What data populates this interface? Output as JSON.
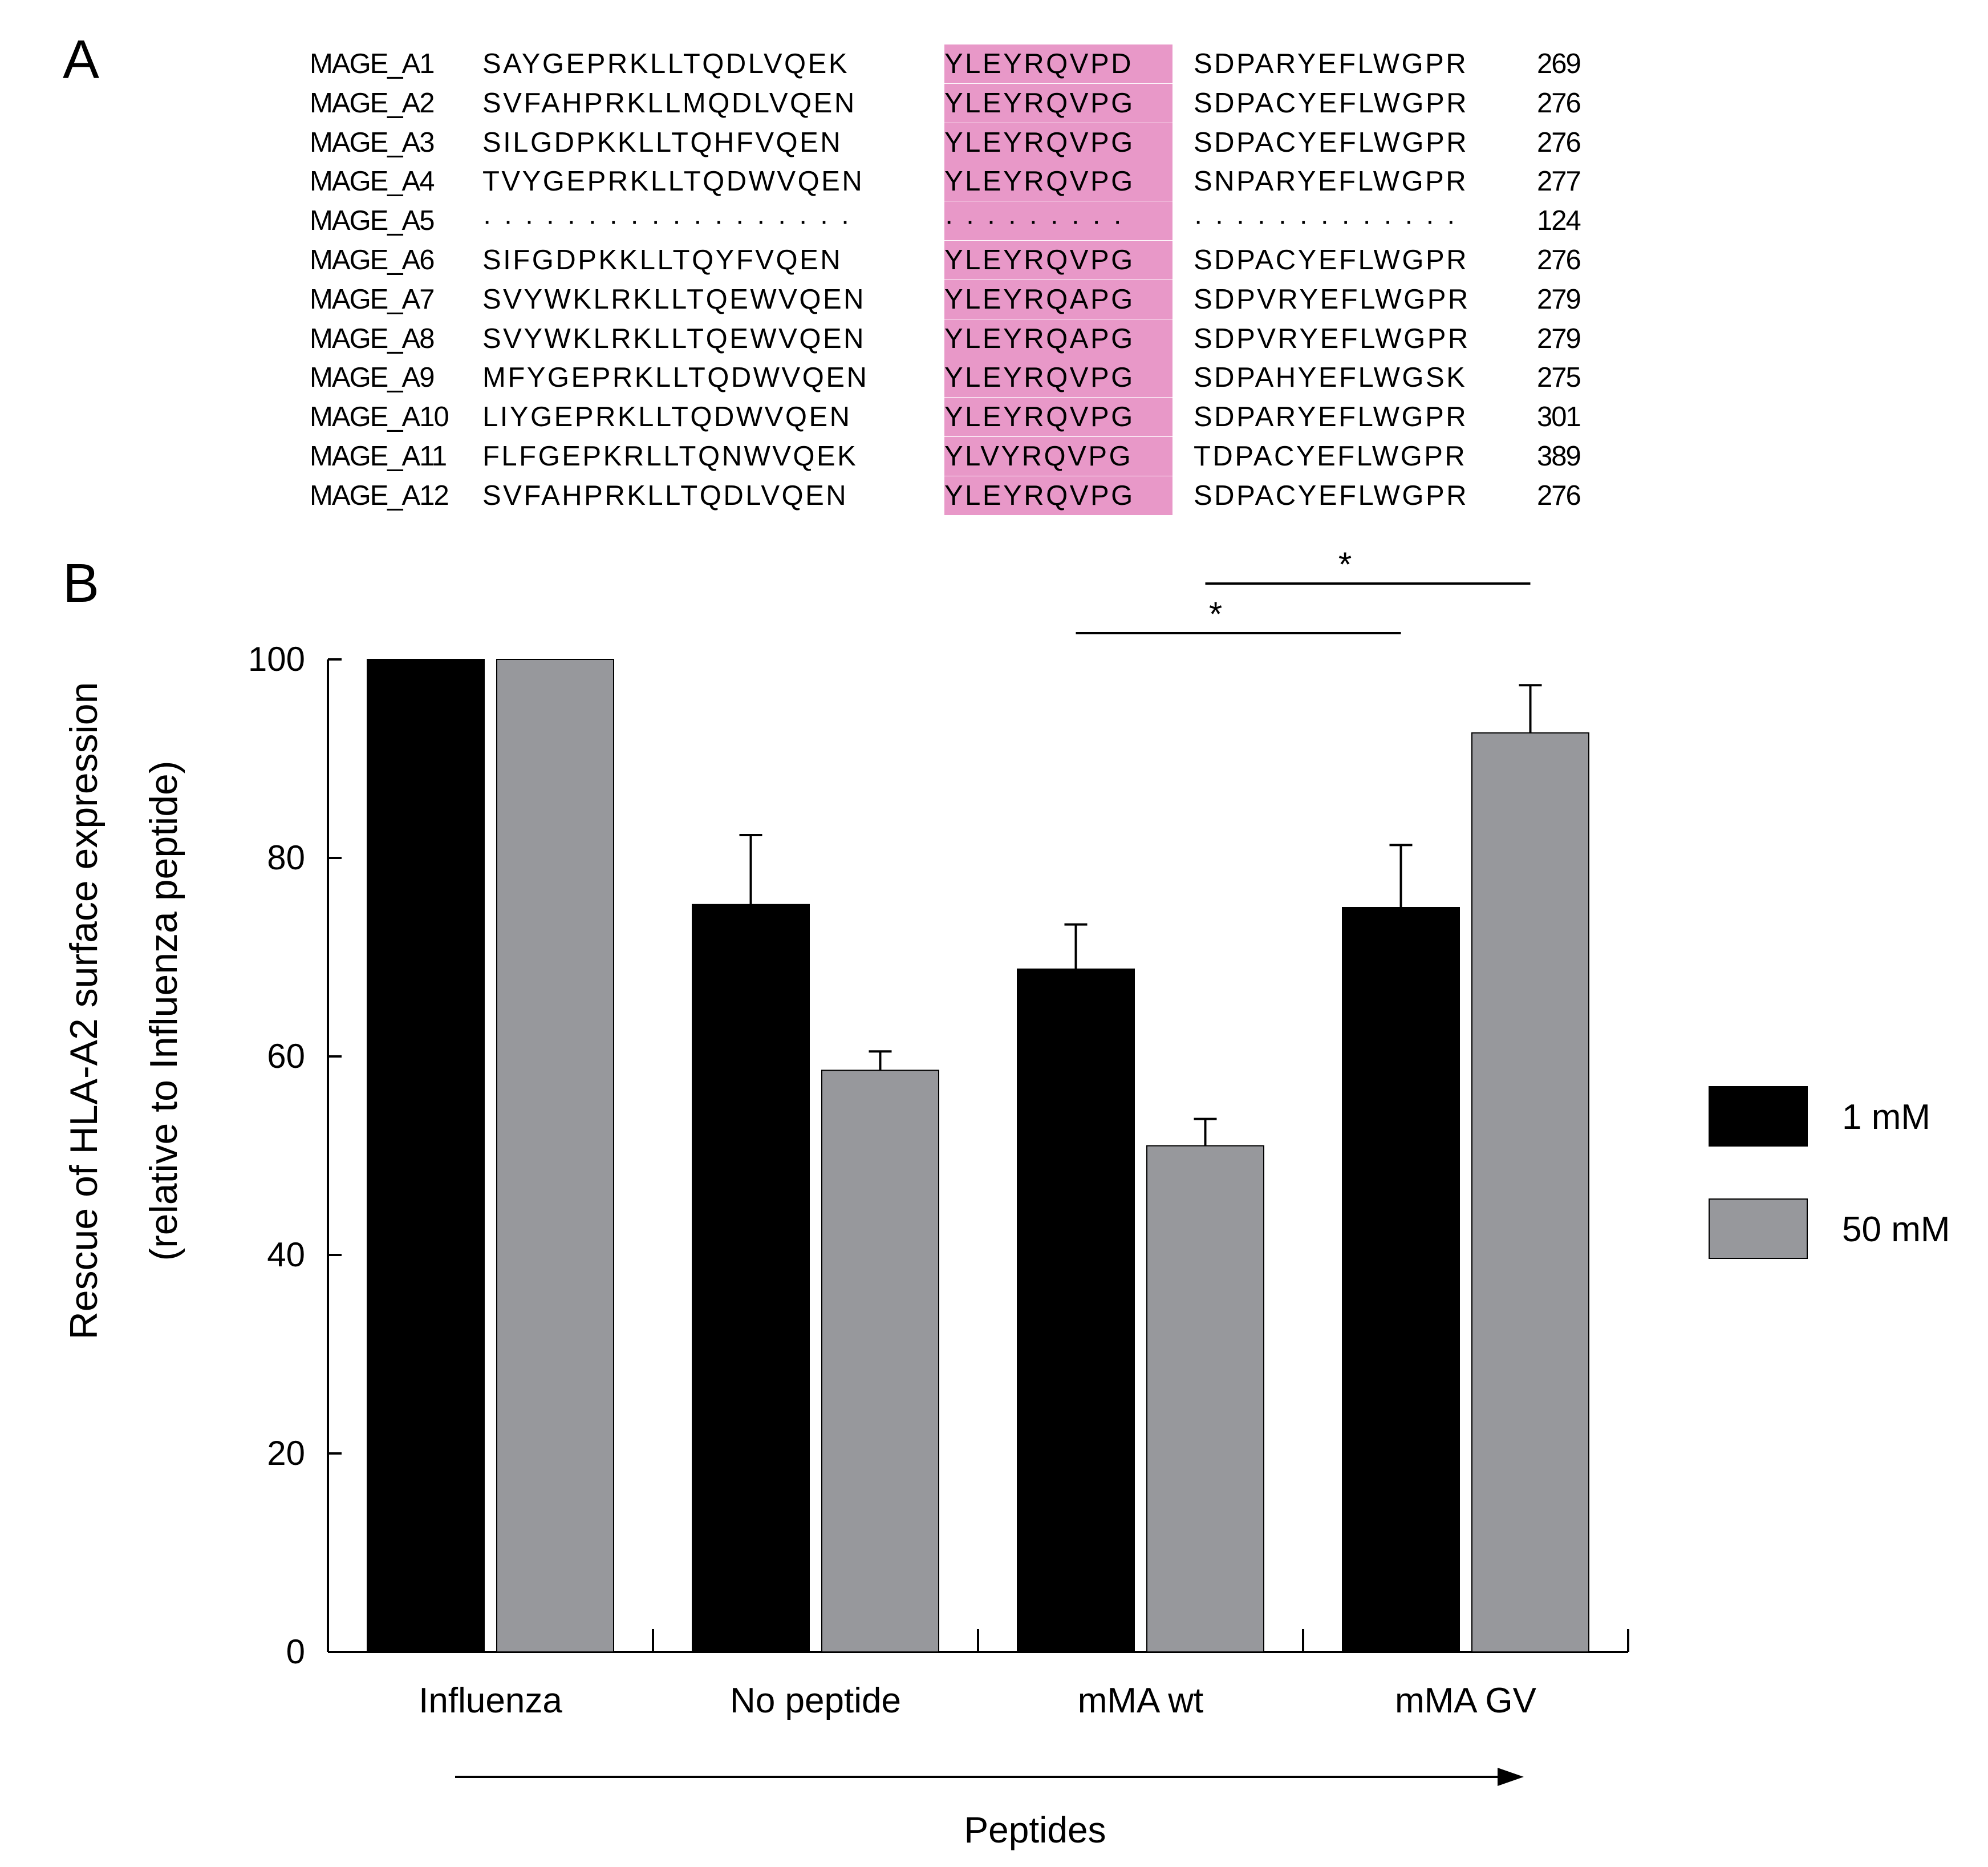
{
  "panel_a": {
    "label": "A",
    "rows": [
      {
        "protein": "MAGE_A1",
        "left": "SAYGEPRKLLTQDLVQEK",
        "motif": "YLEYRQVPD",
        "right": "SDPARYEFLWGPR",
        "end": "269"
      },
      {
        "protein": "MAGE_A2",
        "left": "SVFAHPRKLLMQDLVQEN",
        "motif": "YLEYRQVPG",
        "right": "SDPACYEFLWGPR",
        "end": "276"
      },
      {
        "protein": "MAGE_A3",
        "left": "SILGDPKKLLTQHFVQEN",
        "motif": "YLEYRQVPG",
        "right": "SDPACYEFLWGPR",
        "end": "276"
      },
      {
        "protein": "MAGE_A4",
        "left": "TVYGEPRKLLTQDWVQEN",
        "motif": "YLEYRQVPG",
        "right": "SNPARYEFLWGPR",
        "end": "277"
      },
      {
        "protein": "MAGE_A5",
        "left": "· · · · · · · · · · · · · · · · · ·",
        "motif": "· · · · · · · · ·",
        "right": "· · · · · · · · · · · · ·",
        "end": "124"
      },
      {
        "protein": "MAGE_A6",
        "left": "SIFGDPKKLLTQYFVQEN",
        "motif": "YLEYRQVPG",
        "right": "SDPACYEFLWGPR",
        "end": "276"
      },
      {
        "protein": "MAGE_A7",
        "left": "SVYWKLRKLLTQEWVQEN",
        "motif": "YLEYRQAPG",
        "right": "SDPVRYEFLWGPR",
        "end": "279"
      },
      {
        "protein": "MAGE_A8",
        "left": "SVYWKLRKLLTQEWVQEN",
        "motif": "YLEYRQAPG",
        "right": "SDPVRYEFLWGPR",
        "end": "279"
      },
      {
        "protein": "MAGE_A9",
        "left": "MFYGEPRKLLTQDWVQEN",
        "motif": "YLEYRQVPG",
        "right": "SDPAHYEFLWGSK",
        "end": "275"
      },
      {
        "protein": "MAGE_A10",
        "left": "LIYGEPRKLLTQDWVQEN",
        "motif": "YLEYRQVPG",
        "right": "SDPARYEFLWGPR",
        "end": "301"
      },
      {
        "protein": "MAGE_A11",
        "left": "FLFGEPKRLLTQNWVQEK",
        "motif": "YLVYRQVPG",
        "right": "TDPACYEFLWGPR",
        "end": "389"
      },
      {
        "protein": "MAGE_A12",
        "left": "SVFAHPRKLLTQDLVQEN",
        "motif": "YLEYRQVPG",
        "right": "SDPACYEFLWGPR",
        "end": "276"
      }
    ]
  },
  "panel_b": {
    "label": "B"
  },
  "chart_data": {
    "type": "bar",
    "title": "",
    "xlabel": "Peptides",
    "ylabel_line1": "Rescue of HLA-A2 surface expression",
    "ylabel_line2": "(relative to Influenza peptide)",
    "categories": [
      "Influenza",
      "No peptide",
      "mMA wt",
      "mMA GV"
    ],
    "series": [
      {
        "name": "1 mM",
        "color": "#000000",
        "values": [
          100,
          75.3,
          68.8,
          75.0
        ],
        "errors": [
          0,
          7,
          4.5,
          6.3
        ]
      },
      {
        "name": "50 mM",
        "color": "#97989c",
        "values": [
          100,
          58.6,
          51.0,
          92.6
        ],
        "errors": [
          0,
          1.9,
          2.7,
          4.8
        ]
      }
    ],
    "ylim": [
      0,
      100
    ],
    "yticks": [
      0,
      20,
      40,
      60,
      80,
      100
    ],
    "legend_position": "right",
    "significance": [
      {
        "label": "*",
        "from_category": "mMA wt",
        "to_category": "mMA GV",
        "comparison": "1 mM"
      },
      {
        "label": "*",
        "from_category": "mMA wt",
        "to_category": "mMA GV",
        "comparison": "50 mM"
      }
    ]
  }
}
